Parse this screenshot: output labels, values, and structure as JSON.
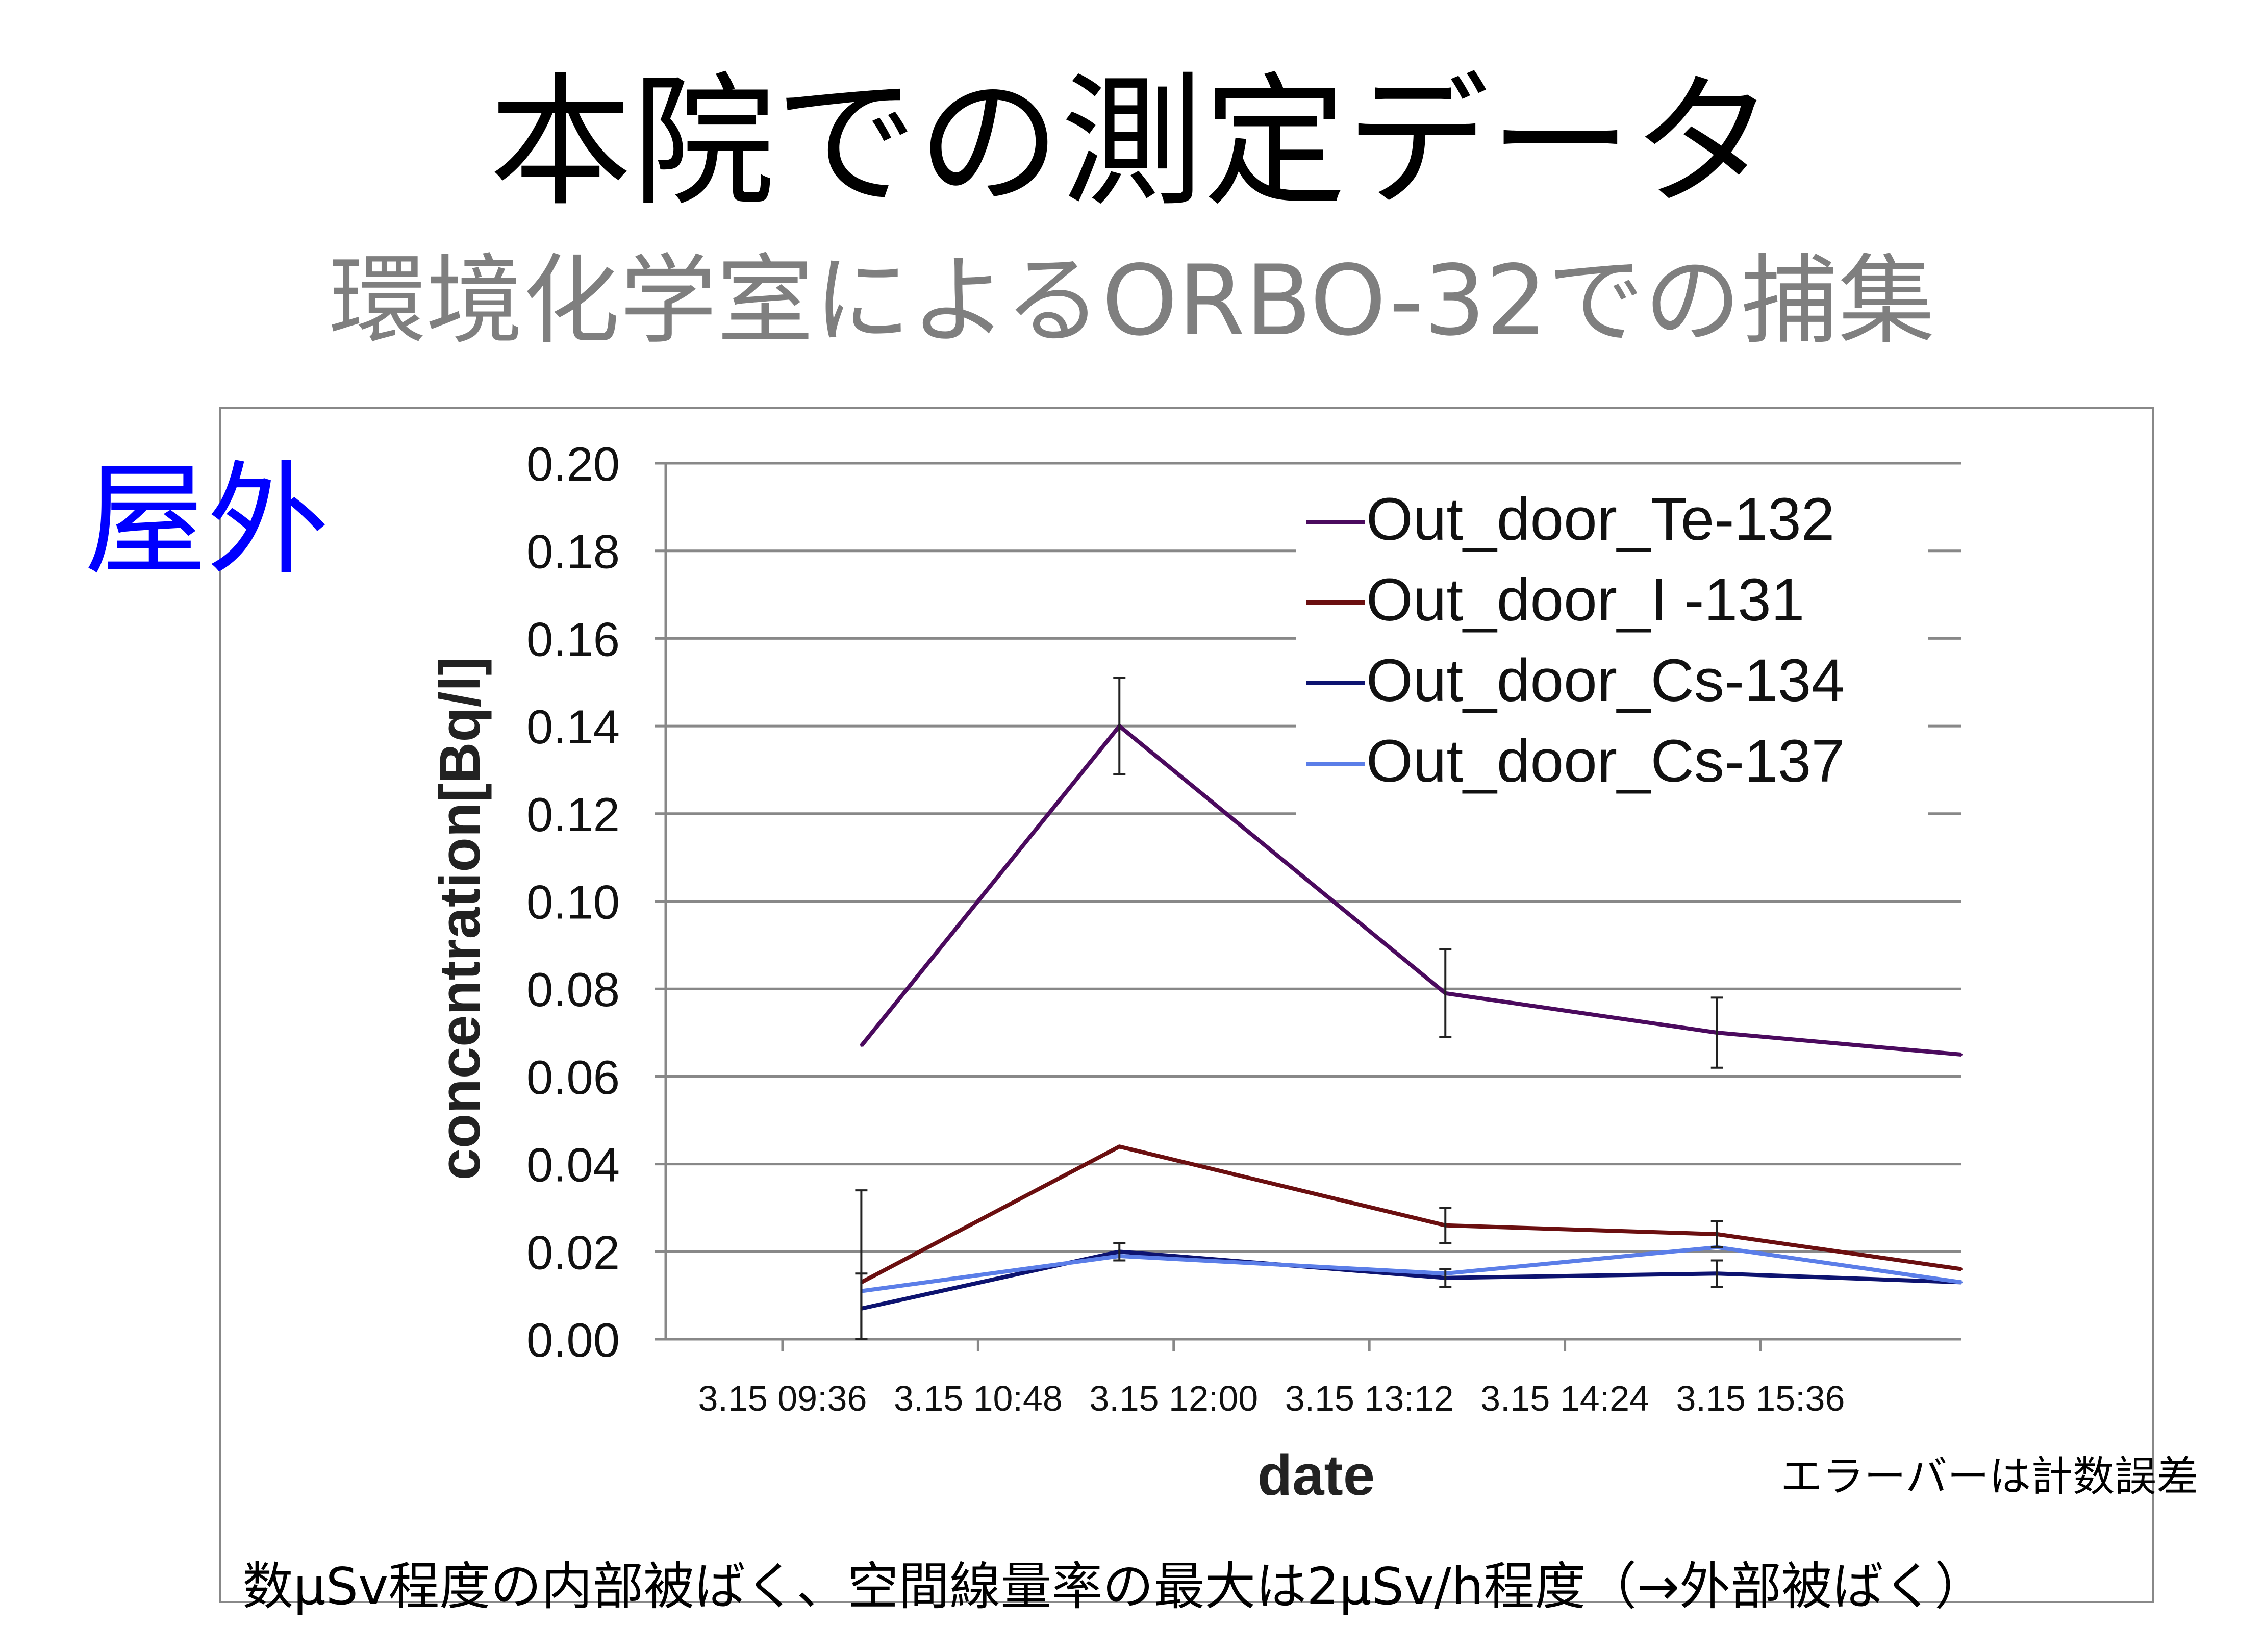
{
  "slide": {
    "title": "本院での測定データ",
    "subtitle": "環境化学室によるORBO-32での捕集",
    "location_label": "屋外",
    "error_bar_note": "エラーバーは計数誤差",
    "bottom_note": "数μSv程度の内部被ばく、空間線量率の最大は2μSv/h程度（→外部被ばく）"
  },
  "colors": {
    "title": "#000000",
    "subtitle": "#7f7f7f",
    "location_label": "#0000ff",
    "gridline": "#888888",
    "frame": "#888888"
  },
  "chart_data": {
    "type": "line",
    "xlabel": "date",
    "ylabel": "concentration[Bq/l]",
    "x_tick_labels": [
      "3.15 09:36",
      "3.15 10:48",
      "3.15 12:00",
      "3.15 13:12",
      "3.15 14:24",
      "3.15 15:36"
    ],
    "x_tick_minutes": [
      576,
      648,
      720,
      792,
      864,
      936
    ],
    "xlim_minutes": [
      533,
      1010
    ],
    "y_tick_labels": [
      "0.00",
      "0.02",
      "0.04",
      "0.06",
      "0.08",
      "0.10",
      "0.12",
      "0.14",
      "0.16",
      "0.18",
      "0.20"
    ],
    "ylim": [
      0,
      0.2
    ],
    "grid": true,
    "legend_position": "top-right",
    "x_times": [
      "3.15 10:05",
      "3.15 11:40",
      "3.15 13:40",
      "3.15 15:20",
      "3.15 16:50"
    ],
    "x_minutes": [
      605,
      700,
      820,
      920,
      1010
    ],
    "series": [
      {
        "name": "Out_door_Te-132",
        "color": "#4b0a5e",
        "values": [
          0.067,
          0.14,
          0.079,
          0.07,
          0.065
        ],
        "errors": [
          null,
          0.011,
          0.01,
          0.008,
          null
        ]
      },
      {
        "name": "Out_door_I -131",
        "color": "#6b0f10",
        "values": [
          0.013,
          0.044,
          0.026,
          0.024,
          0.016
        ],
        "errors": [
          0.021,
          null,
          0.004,
          0.003,
          null
        ]
      },
      {
        "name": "Out_door_Cs-134",
        "color": "#0d1370",
        "values": [
          0.007,
          0.02,
          0.014,
          0.015,
          0.013
        ],
        "errors": [
          0.008,
          0.002,
          0.002,
          0.003,
          null
        ]
      },
      {
        "name": "Out_door_Cs-137",
        "color": "#5b7ee8",
        "values": [
          0.011,
          0.019,
          0.015,
          0.021,
          0.013
        ],
        "errors": [
          null,
          null,
          null,
          null,
          null
        ]
      }
    ]
  }
}
